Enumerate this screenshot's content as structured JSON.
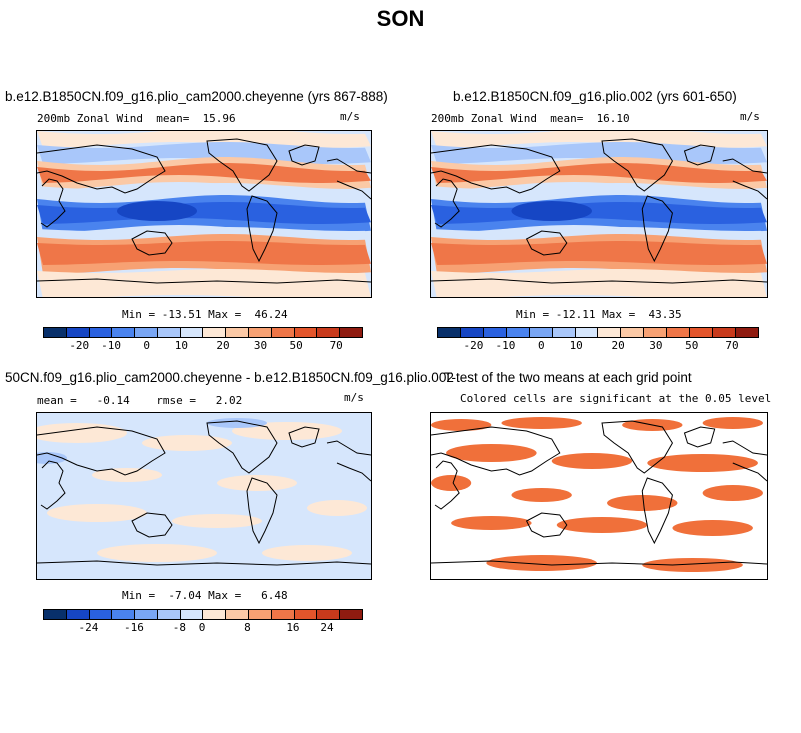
{
  "figure_title": "SON",
  "colors": {
    "wind_scale": [
      "#08306b",
      "#1646c4",
      "#2a61e0",
      "#4a83ee",
      "#79a6f4",
      "#a9c7fa",
      "#d6e6fc",
      "#fde8d6",
      "#fbc9a6",
      "#f7a173",
      "#ef7648",
      "#e3552b",
      "#c83a1c",
      "#8f1b10"
    ],
    "diff_scale": [
      "#08306b",
      "#1646c4",
      "#2a61e0",
      "#4a83ee",
      "#79a6f4",
      "#a9c7fa",
      "#d6e6fc",
      "#fde8d6",
      "#fbc9a6",
      "#f7a173",
      "#ef7648",
      "#e3552b",
      "#c83a1c",
      "#8f1b10"
    ],
    "significant": "#f0703a"
  },
  "panels": {
    "case1": {
      "title": "b.e12.B1850CN.f09_g16.plio_cam2000.cheyenne (yrs 867-888)",
      "variable_label": "200mb Zonal Wind  mean=  15.96",
      "units": "m/s",
      "min_max": "Min = -13.51 Max =  46.24",
      "colorbar_ticks": [
        "-20",
        "-10",
        "0",
        "10",
        "20",
        "30",
        "50",
        "70"
      ]
    },
    "case2": {
      "title": "b.e12.B1850CN.f09_g16.plio.002 (yrs 601-650)",
      "variable_label": "200mb Zonal Wind  mean=  16.10",
      "units": "m/s",
      "min_max": "Min = -12.11 Max =  43.35",
      "colorbar_ticks": [
        "-20",
        "-10",
        "0",
        "10",
        "20",
        "30",
        "50",
        "70"
      ]
    },
    "difference": {
      "title": "50CN.f09_g16.plio_cam2000.cheyenne - b.e12.B1850CN.f09_g16.plio.002",
      "variable_label": "mean =   -0.14    rmse =   2.02",
      "units": "m/s",
      "min_max": "Min =  -7.04 Max =   6.48",
      "colorbar_ticks": [
        "-24",
        "-16",
        "-8",
        "0",
        "8",
        "16",
        "24"
      ]
    },
    "ttest": {
      "title": "T-test of the two means at each grid point",
      "variable_label": "Colored cells are significant at the 0.05 level",
      "significance_level": 0.05
    }
  }
}
